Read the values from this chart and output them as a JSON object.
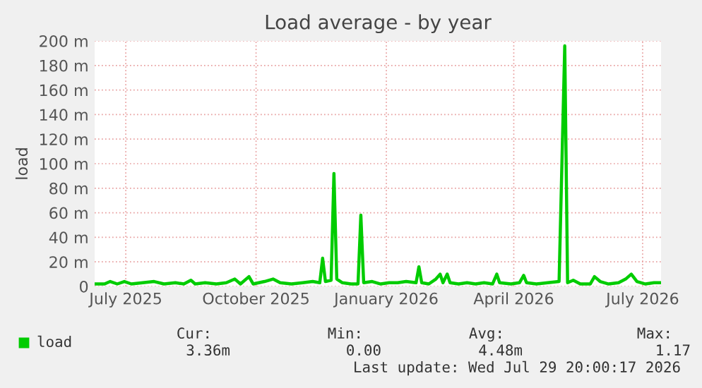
{
  "chart_data": {
    "type": "line",
    "title": "Load average - by year",
    "ylabel": "load",
    "x": [
      "2025-06-24",
      "2025-07-01",
      "2025-07-05",
      "2025-07-10",
      "2025-07-15",
      "2025-07-20",
      "2025-07-28",
      "2025-08-05",
      "2025-08-12",
      "2025-08-20",
      "2025-08-26",
      "2025-08-31",
      "2025-09-03",
      "2025-09-10",
      "2025-09-18",
      "2025-09-25",
      "2025-10-01",
      "2025-10-05",
      "2025-10-11",
      "2025-10-14",
      "2025-10-22",
      "2025-10-28",
      "2025-11-02",
      "2025-11-10",
      "2025-11-18",
      "2025-11-25",
      "2025-11-30",
      "2025-12-02",
      "2025-12-04",
      "2025-12-08",
      "2025-12-10",
      "2025-12-12",
      "2025-12-16",
      "2025-12-22",
      "2025-12-27",
      "2025-12-29",
      "2025-12-31",
      "2026-01-06",
      "2026-01-12",
      "2026-01-18",
      "2026-01-24",
      "2026-01-30",
      "2026-02-06",
      "2026-02-08",
      "2026-02-10",
      "2026-02-15",
      "2026-02-20",
      "2026-02-23",
      "2026-02-25",
      "2026-02-28",
      "2026-03-02",
      "2026-03-08",
      "2026-03-14",
      "2026-03-20",
      "2026-03-26",
      "2026-04-01",
      "2026-04-04",
      "2026-04-06",
      "2026-04-14",
      "2026-04-20",
      "2026-04-23",
      "2026-04-25",
      "2026-05-02",
      "2026-05-10",
      "2026-05-18",
      "2026-05-22",
      "2026-05-24",
      "2026-05-28",
      "2026-06-02",
      "2026-06-09",
      "2026-06-12",
      "2026-06-16",
      "2026-06-22",
      "2026-06-29",
      "2026-07-04",
      "2026-07-08",
      "2026-07-12",
      "2026-07-18",
      "2026-07-24",
      "2026-07-28"
    ],
    "series": [
      {
        "name": "load",
        "color": "#00cc00",
        "values": [
          2,
          2,
          4,
          2,
          4,
          2,
          3,
          4,
          2,
          3,
          2,
          5,
          2,
          3,
          2,
          3,
          6,
          2,
          8,
          2,
          4,
          6,
          3,
          2,
          3,
          4,
          3,
          23,
          4,
          5,
          92,
          6,
          3,
          2,
          2,
          58,
          3,
          4,
          2,
          3,
          3,
          4,
          3,
          16,
          3,
          2,
          6,
          10,
          3,
          10,
          3,
          2,
          3,
          2,
          3,
          2,
          10,
          3,
          2,
          3,
          9,
          3,
          2,
          3,
          4,
          196,
          3,
          5,
          2,
          2,
          8,
          4,
          2,
          3,
          6,
          10,
          4,
          2,
          3,
          3
        ]
      }
    ],
    "xlim": [
      "2025-06-24",
      "2026-07-29"
    ],
    "xticks": [
      {
        "value": "2025-07-16",
        "label": "July 2025"
      },
      {
        "value": "2025-10-16",
        "label": "October 2025"
      },
      {
        "value": "2026-01-16",
        "label": "January 2026"
      },
      {
        "value": "2026-04-16",
        "label": "April 2026"
      },
      {
        "value": "2026-07-16",
        "label": "July 2026"
      }
    ],
    "ylim": [
      0,
      200
    ],
    "yticks": [
      0,
      {
        "value": 20,
        "label": "20 m"
      },
      {
        "value": 40,
        "label": "40 m"
      },
      {
        "value": 60,
        "label": "60 m"
      },
      {
        "value": 80,
        "label": "80 m"
      },
      {
        "value": 100,
        "label": "100 m"
      },
      {
        "value": 120,
        "label": "120 m"
      },
      {
        "value": 140,
        "label": "140 m"
      },
      {
        "value": 160,
        "label": "160 m"
      },
      {
        "value": 180,
        "label": "180 m"
      },
      {
        "value": 200,
        "label": "200 m"
      }
    ],
    "grid": true,
    "legend": "bottom left",
    "line_style": "solid",
    "marker": "none",
    "annotations": [
      "Cur:",
      "Min:",
      "Avg:",
      "Max:",
      "3.36m",
      "0.00",
      "4.48m",
      "1.17",
      "Last update: Wed Jul 29 20:00:17 2026"
    ]
  }
}
